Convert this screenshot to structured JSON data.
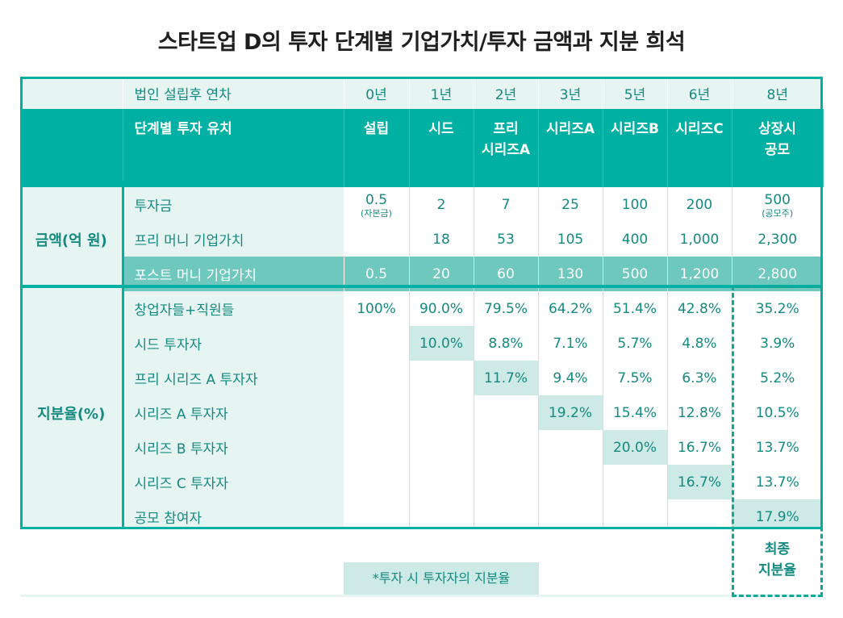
{
  "title": "스타트업 D의 투자 단계별 기업가치/투자 금액과 지분 희석",
  "header": {
    "year_label": "법인 설립후 연차",
    "years": [
      "0년",
      "1년",
      "2년",
      "3년",
      "5년",
      "6년",
      "8년"
    ],
    "stage_label": "단계별 투자 유치",
    "stages": [
      [
        "설립"
      ],
      [
        "시드"
      ],
      [
        "프리",
        "시리즈A"
      ],
      [
        "시리즈A"
      ],
      [
        "시리즈B"
      ],
      [
        "시리즈C"
      ],
      [
        "상장시",
        "공모"
      ]
    ]
  },
  "amount": {
    "group_label": "금액(억 원)",
    "rows": [
      {
        "label": "투자금",
        "values": [
          "0.5",
          "2",
          "7",
          "25",
          "100",
          "200",
          "500"
        ],
        "notes": [
          "(자본금)",
          "",
          "",
          "",
          "",
          "",
          "(공모주)"
        ]
      },
      {
        "label": "프리 머니 기업가치",
        "values": [
          "",
          "18",
          "53",
          "105",
          "400",
          "1,000",
          "2,300"
        ]
      },
      {
        "label": "포스트 머니 기업가치",
        "values": [
          "0.5",
          "20",
          "60",
          "130",
          "500",
          "1,200",
          "2,800"
        ]
      }
    ]
  },
  "shares": {
    "group_label": "지분율(%)",
    "rows": [
      {
        "label": "창업자들+직원들",
        "values": [
          "100%",
          "90.0%",
          "79.5%",
          "64.2%",
          "51.4%",
          "42.8%",
          "35.2%"
        ],
        "hl": -1
      },
      {
        "label": "시드 투자자",
        "values": [
          "",
          "10.0%",
          "8.8%",
          "7.1%",
          "5.7%",
          "4.8%",
          "3.9%"
        ],
        "hl": 1
      },
      {
        "label": "프리 시리즈 A 투자자",
        "values": [
          "",
          "",
          "11.7%",
          "9.4%",
          "7.5%",
          "6.3%",
          "5.2%"
        ],
        "hl": 2
      },
      {
        "label": "시리즈 A 투자자",
        "values": [
          "",
          "",
          "",
          "19.2%",
          "15.4%",
          "12.8%",
          "10.5%"
        ],
        "hl": 3
      },
      {
        "label": "시리즈 B 투자자",
        "values": [
          "",
          "",
          "",
          "",
          "20.0%",
          "16.7%",
          "13.7%"
        ],
        "hl": 4
      },
      {
        "label": "시리즈 C 투자자",
        "values": [
          "",
          "",
          "",
          "",
          "",
          "16.7%",
          "13.7%"
        ],
        "hl": 5
      },
      {
        "label": "공모 참여자",
        "values": [
          "",
          "",
          "",
          "",
          "",
          "",
          "17.9%"
        ],
        "hl": 6
      }
    ]
  },
  "note": "*투자 시 투자자의 지분율",
  "final_label": [
    "최종",
    "지분율"
  ],
  "colors": {
    "teal": "#00b0a2",
    "light": "#e6f4f2",
    "highlight": "#cdeae6",
    "post_row": "#6ec8bd",
    "text": "#148a80"
  }
}
